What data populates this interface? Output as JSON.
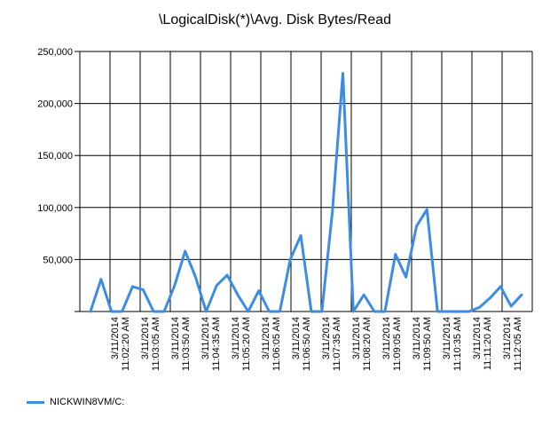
{
  "chart_data": {
    "type": "line",
    "title": "\\LogicalDisk(*)\\Avg. Disk Bytes/Read",
    "xlabel": "",
    "ylabel": "",
    "ylim": [
      0,
      250000
    ],
    "yticks": [
      0,
      50000,
      100000,
      150000,
      200000,
      250000
    ],
    "ytick_labels": [
      "",
      "50,000",
      "100,000",
      "150,000",
      "200,000",
      "250,000"
    ],
    "x_tick_labels": [
      [
        "3/11/2014",
        "11:02:20 AM"
      ],
      [
        "3/11/2014",
        "11:03:05 AM"
      ],
      [
        "3/11/2014",
        "11:03:50 AM"
      ],
      [
        "3/11/2014",
        "11:04:35 AM"
      ],
      [
        "3/11/2014",
        "11:05:20 AM"
      ],
      [
        "3/11/2014",
        "11:06:05 AM"
      ],
      [
        "3/11/2014",
        "11:06:50 AM"
      ],
      [
        "3/11/2014",
        "11:07:35 AM"
      ],
      [
        "3/11/2014",
        "11:08:20 AM"
      ],
      [
        "3/11/2014",
        "11:09:05 AM"
      ],
      [
        "3/11/2014",
        "11:09:50 AM"
      ],
      [
        "3/11/2014",
        "11:10:35 AM"
      ],
      [
        "3/11/2014",
        "11:11:20 AM"
      ],
      [
        "3/11/2014",
        "11:12:05 AM"
      ]
    ],
    "grid": true,
    "legend_position": "bottom-left",
    "series": [
      {
        "name": "NICKWIN8VM/C:",
        "color": "#3c8ce6",
        "values": [
          0,
          31000,
          0,
          0,
          24000,
          21000,
          0,
          0,
          25000,
          58000,
          33000,
          0,
          25000,
          35000,
          16000,
          0,
          20000,
          0,
          0,
          50000,
          73000,
          0,
          0,
          95000,
          229000,
          0,
          16000,
          0,
          0,
          55000,
          33000,
          82000,
          98000,
          0,
          0,
          0,
          0,
          4000,
          13000,
          24000,
          5000,
          16000
        ]
      }
    ]
  }
}
